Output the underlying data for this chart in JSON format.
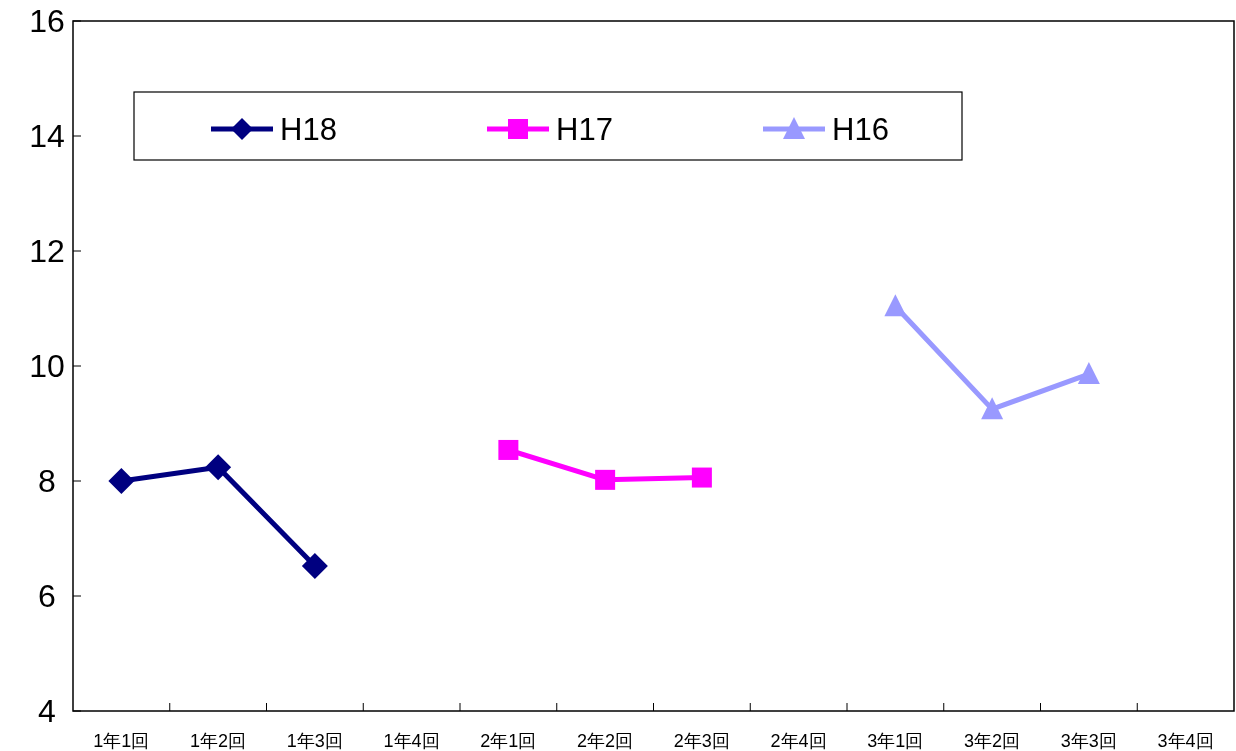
{
  "chart_data": {
    "type": "line",
    "categories": [
      "1年1回",
      "1年2回",
      "1年3回",
      "1年4回",
      "2年1回",
      "2年2回",
      "2年3回",
      "2年4回",
      "3年1回",
      "3年2回",
      "3年3回",
      "3年4回"
    ],
    "series": [
      {
        "name": "H18",
        "color": "#000080",
        "marker": "diamond",
        "values": [
          8.0,
          8.24,
          6.52,
          null,
          null,
          null,
          null,
          null,
          null,
          null,
          null,
          null
        ]
      },
      {
        "name": "H17",
        "color": "#ff00ff",
        "marker": "square",
        "values": [
          null,
          null,
          null,
          null,
          8.54,
          8.02,
          8.06,
          null,
          null,
          null,
          null,
          null
        ]
      },
      {
        "name": "H16",
        "color": "#9999ff",
        "marker": "triangle",
        "values": [
          null,
          null,
          null,
          null,
          null,
          null,
          null,
          null,
          11.04,
          9.25,
          9.86,
          null
        ]
      }
    ],
    "ylim": [
      4,
      16
    ],
    "yticks": [
      4,
      6,
      8,
      10,
      12,
      14,
      16
    ],
    "grid": false,
    "legend": "top",
    "line_style": "solid"
  }
}
